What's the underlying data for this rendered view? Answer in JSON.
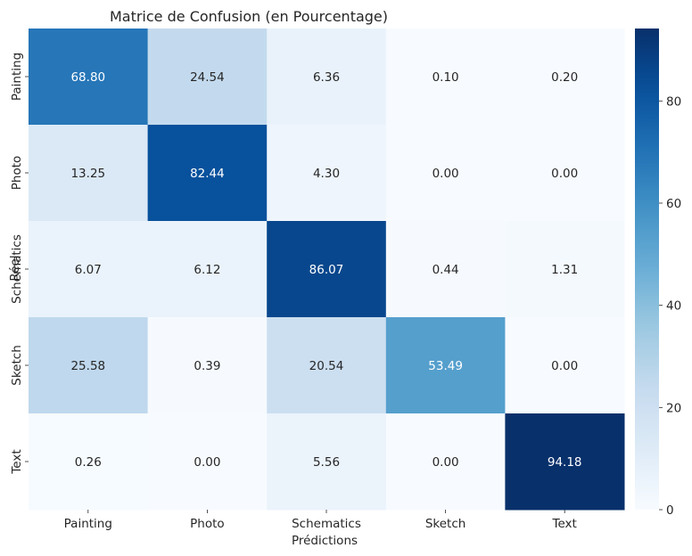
{
  "chart_data": {
    "type": "heatmap",
    "title": "Matrice de Confusion (en Pourcentage)",
    "xlabel": "Prédictions",
    "ylabel": "Réel",
    "x_categories": [
      "Painting",
      "Photo",
      "Schematics",
      "Sketch",
      "Text"
    ],
    "y_categories": [
      "Painting",
      "Photo",
      "Schematics",
      "Sketch",
      "Text"
    ],
    "values": [
      [
        68.8,
        24.54,
        6.36,
        0.1,
        0.2
      ],
      [
        13.25,
        82.44,
        4.3,
        0.0,
        0.0
      ],
      [
        6.07,
        6.12,
        86.07,
        0.44,
        1.31
      ],
      [
        25.58,
        0.39,
        20.54,
        53.49,
        0.0
      ],
      [
        0.26,
        0.0,
        5.56,
        0.0,
        94.18
      ]
    ],
    "value_labels": [
      [
        "68.80",
        "24.54",
        "6.36",
        "0.10",
        "0.20"
      ],
      [
        "13.25",
        "82.44",
        "4.30",
        "0.00",
        "0.00"
      ],
      [
        "6.07",
        "6.12",
        "86.07",
        "0.44",
        "1.31"
      ],
      [
        "25.58",
        "0.39",
        "20.54",
        "53.49",
        "0.00"
      ],
      [
        "0.26",
        "0.00",
        "5.56",
        "0.00",
        "94.18"
      ]
    ],
    "colormap": "Blues",
    "color_range": [
      0,
      94.18
    ],
    "colorbar_ticks": [
      0,
      20,
      40,
      60,
      80
    ],
    "colorbar_tick_labels": [
      "0",
      "20",
      "40",
      "60",
      "80"
    ],
    "grid": false
  }
}
